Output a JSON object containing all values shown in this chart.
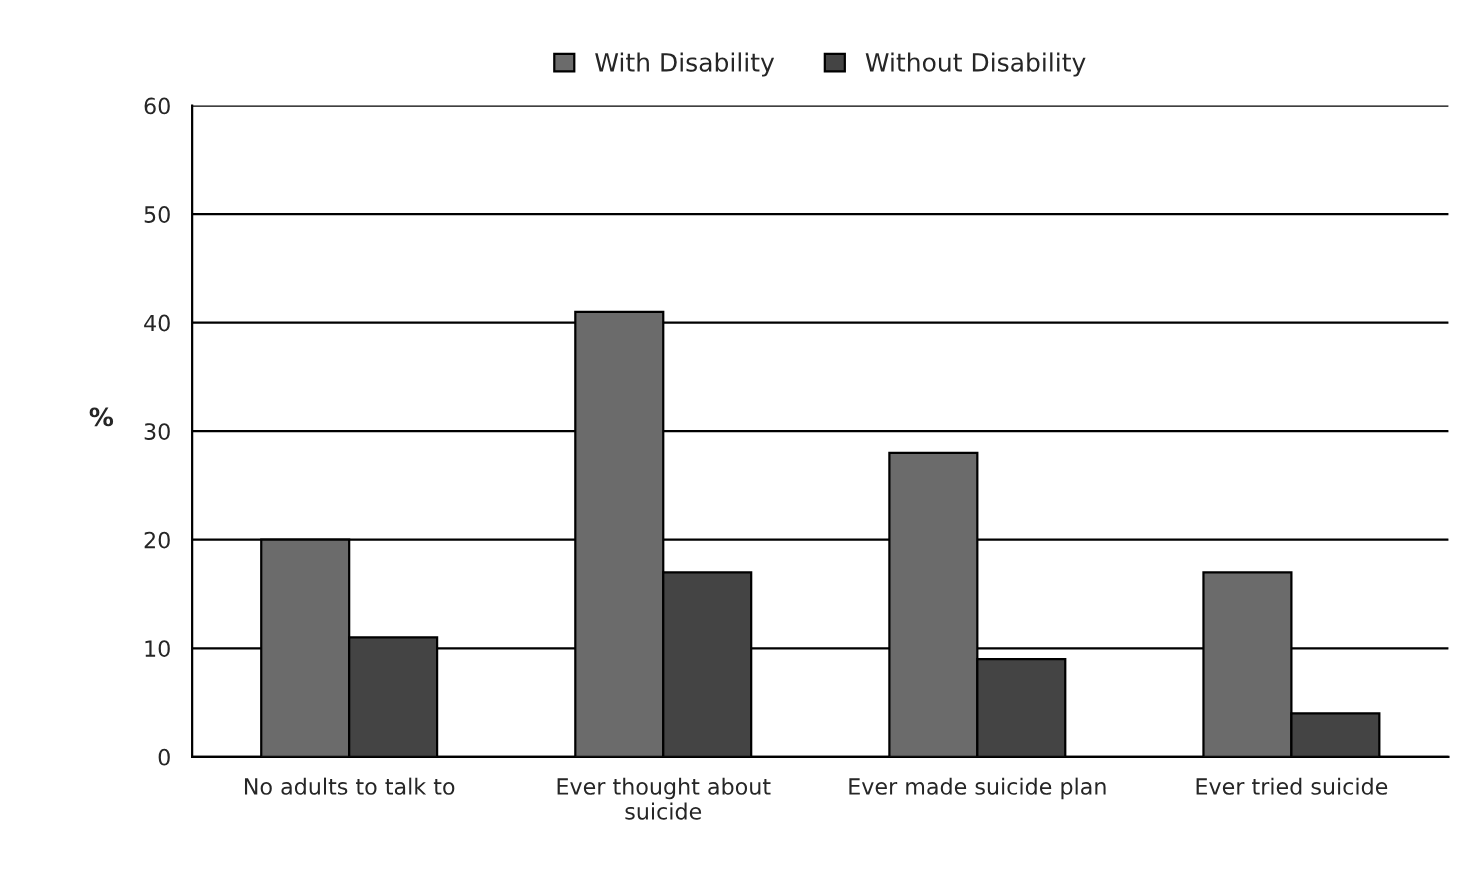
{
  "chart_data": {
    "type": "bar",
    "ylabel": "%",
    "categories": [
      "No adults to talk to",
      "Ever thought about\nsuicide",
      "Ever made suicide plan",
      "Ever tried suicide"
    ],
    "series": [
      {
        "name": "With Disability",
        "color": "#6b6b6b",
        "values": [
          20,
          41,
          28,
          17
        ]
      },
      {
        "name": "Without Disability",
        "color": "#444444",
        "values": [
          11,
          17,
          9,
          4
        ]
      }
    ],
    "ylim": [
      0,
      60
    ],
    "yticks": [
      0,
      10,
      20,
      30,
      40,
      50,
      60
    ],
    "grid": "y",
    "legend": "top"
  }
}
